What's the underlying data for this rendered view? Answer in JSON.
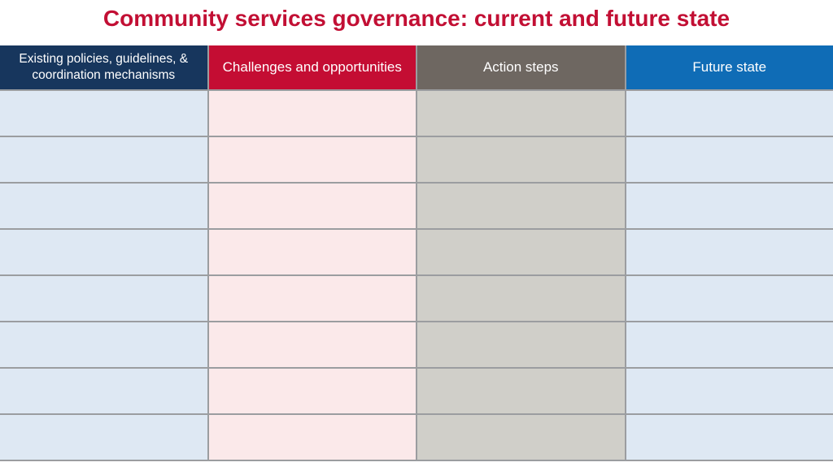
{
  "title": "Community services governance: current and future state",
  "colors": {
    "title_red": "#C20F34",
    "gridline": "#9B9DA0",
    "header_navy": "#17365D",
    "header_red": "#C40D33",
    "header_gray": "#6E6761",
    "header_blue": "#0F6CB6",
    "body_light_blue": "#DEE8F3",
    "body_light_pink": "#FBE9EA",
    "body_light_gray": "#D0CFC9"
  },
  "table": {
    "columns": [
      {
        "id": "existing",
        "label": "Existing policies, guidelines, & coordination mechanisms",
        "header_color": "#17365D",
        "body_color": "#DEE8F3"
      },
      {
        "id": "challenges",
        "label": "Challenges and opportunities",
        "header_color": "#C40D33",
        "body_color": "#FBE9EA"
      },
      {
        "id": "actions",
        "label": "Action steps",
        "header_color": "#6E6761",
        "body_color": "#D0CFC9"
      },
      {
        "id": "future",
        "label": "Future state",
        "header_color": "#0F6CB6",
        "body_color": "#DEE8F3"
      }
    ],
    "row_count": 8,
    "rows": [
      [
        "",
        "",
        "",
        ""
      ],
      [
        "",
        "",
        "",
        ""
      ],
      [
        "",
        "",
        "",
        ""
      ],
      [
        "",
        "",
        "",
        ""
      ],
      [
        "",
        "",
        "",
        ""
      ],
      [
        "",
        "",
        "",
        ""
      ],
      [
        "",
        "",
        "",
        ""
      ],
      [
        "",
        "",
        "",
        ""
      ]
    ]
  }
}
